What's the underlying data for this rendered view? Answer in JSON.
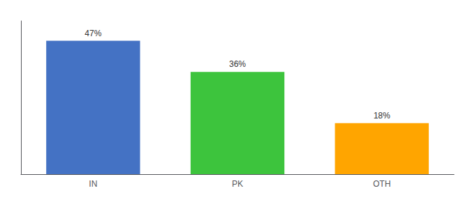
{
  "chart_data": {
    "type": "bar",
    "categories": [
      "IN",
      "PK",
      "OTH"
    ],
    "values": [
      47,
      36,
      18
    ],
    "value_labels": [
      "47%",
      "36%",
      "18%"
    ],
    "data_labels": true,
    "colors": [
      "#4472C4",
      "#3DC43D",
      "#FFA500"
    ],
    "ylim": [
      0,
      54
    ],
    "grid": false,
    "tick_labels": "x"
  }
}
